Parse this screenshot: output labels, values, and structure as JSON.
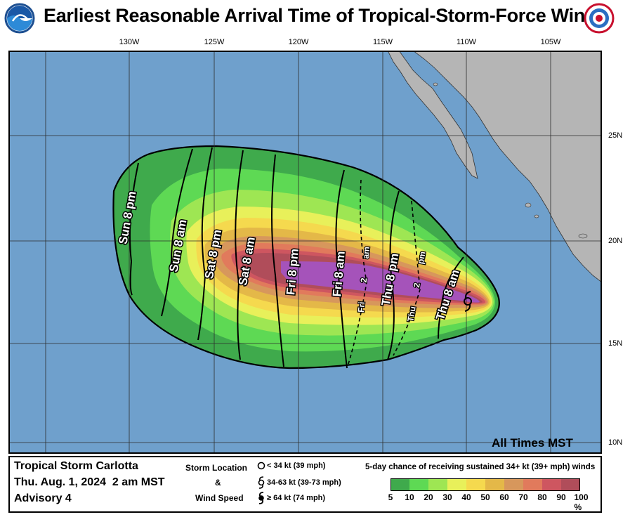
{
  "title": "Earliest Reasonable Arrival Time of Tropical-Storm-Force Winds",
  "logos": {
    "left": "noaa-logo",
    "right": "national-weather-service-logo"
  },
  "map": {
    "longitude_labels": [
      "130W",
      "125W",
      "120W",
      "115W",
      "110W",
      "105W"
    ],
    "latitude_labels": [
      "25N",
      "20N",
      "15N",
      "10N"
    ],
    "time_zone_note": "All Times MST",
    "colors": {
      "ocean": "#6fa0cc",
      "land": "#b5b5b5",
      "grid": "#2c2c2c"
    },
    "arrival_labels": [
      "Sun 8 pm",
      "Sun 8 am",
      "Sat 8 pm",
      "Sat 8 am",
      "Fri 8 pm",
      "Fri 8 am",
      "Fri 2 am",
      "Thu 8 pm",
      "Thu 2 pm",
      "Thu 8 am"
    ]
  },
  "storm": {
    "name": "Tropical Storm Carlotta",
    "datetime": "Thu. Aug. 1, 2024  2 am MST",
    "advisory": "Advisory 4"
  },
  "legend": {
    "location_title": "Storm Location",
    "ampersand": "&",
    "wind_speed_title": "Wind Speed",
    "symbols": [
      {
        "icon": "circle-icon",
        "label": "< 34 kt (39 mph)"
      },
      {
        "icon": "tropical-storm-icon",
        "label": "34-63 kt (39-73 mph)"
      },
      {
        "icon": "hurricane-icon",
        "label": "≥ 64 kt (74 mph)"
      }
    ],
    "probability_title": "5-day chance of receiving sustained 34+ kt (39+ mph) winds",
    "probability_labels": [
      "5",
      "10",
      "20",
      "30",
      "40",
      "50",
      "60",
      "70",
      "80",
      "90",
      "100 %"
    ],
    "probability_colors": [
      "#3faa4c",
      "#5ed954",
      "#9ee653",
      "#e8f05a",
      "#f5d94e",
      "#e4b848",
      "#d7975c",
      "#e17a5c",
      "#ce5660",
      "#b04d5a",
      "#a553ba"
    ]
  }
}
